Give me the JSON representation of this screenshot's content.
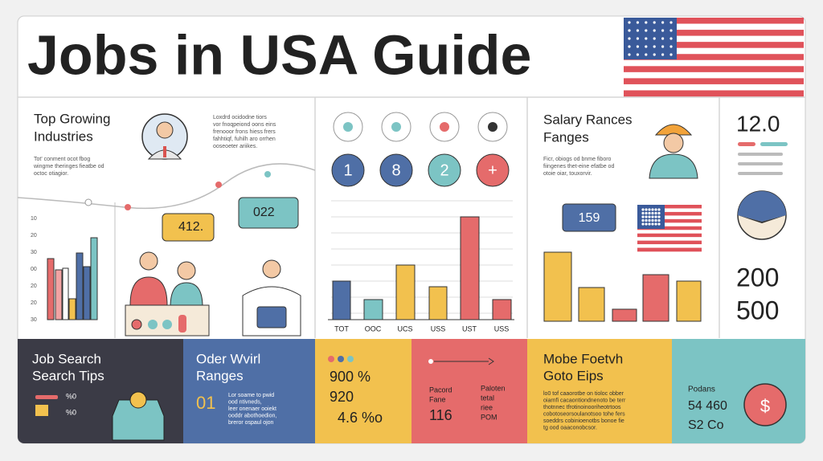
{
  "header": {
    "title": "Jobs in USA Guide"
  },
  "industries": {
    "title": [
      "Top Growing",
      "Industries"
    ],
    "note": [
      "Loxdrd ocidodne tiors",
      "vor fnoqpeiond oons eins",
      "frenooor frons hiess frers",
      "fahhtiqf, fuhilh aro orrhen",
      "ooseoeter ariikes."
    ],
    "text": [
      "Tot' conment ocot fbog",
      "wingme theringes fieatbe od",
      "octoc otiagior."
    ],
    "axis": [
      "10",
      "20",
      "30",
      "00",
      "20",
      "20",
      "30"
    ],
    "bubbles": [
      "412.",
      "022"
    ]
  },
  "middle": {
    "numbers": [
      "1",
      "8",
      "2",
      "+"
    ],
    "categories": [
      "TOT",
      "OOC",
      "UCS",
      "USS",
      "UST",
      "USS"
    ]
  },
  "salary": {
    "title": [
      "Salary Rances",
      "Fanges"
    ],
    "text": [
      "Ficr, obiogs od bnme fiboro",
      "fiingenes thet-eine efatbe od",
      "otoie oiar, touxorvir."
    ],
    "badge": "159"
  },
  "side": {
    "top": "12.0",
    "mid": "200",
    "bottom": "500"
  },
  "tips": {
    "title": [
      "Job Search",
      "Search Tips"
    ],
    "icons": [
      "%0",
      "%0"
    ]
  },
  "ranges": {
    "title": [
      "Oder Wvirl",
      "Ranges"
    ],
    "number": "01",
    "text": [
      "Lor soame to pwid",
      "ood  ntivneds,",
      "leer onenaer ooiekt",
      "ooddr abothoedion,",
      "breror ospaul ojon"
    ]
  },
  "stats": {
    "lines": [
      "900 %",
      "920",
      "4.6 %o"
    ]
  },
  "record": {
    "left": [
      "Pacord",
      "Fane"
    ],
    "number": "116",
    "right": [
      "Paloten",
      "tetal",
      "riee",
      "POM"
    ]
  },
  "mobile": {
    "title": [
      "Mobe Foetvh",
      "Goto Eips"
    ],
    "text": [
      "lo0 tof caaorotbe on tioloc obber",
      "oiarnfi cacaontiondnenoto be terr",
      "thotnnec tfrotinoinooriheotrtoos",
      "cobotoseorsoulanotsoo tohe fers",
      "soeddrs cobinioenotbs bonoe fie",
      "tg ood oaaconobcsor."
    ]
  },
  "pay": {
    "label": "Podans",
    "lines": [
      "54 460",
      "S2 Co"
    ],
    "icon": "$"
  }
}
